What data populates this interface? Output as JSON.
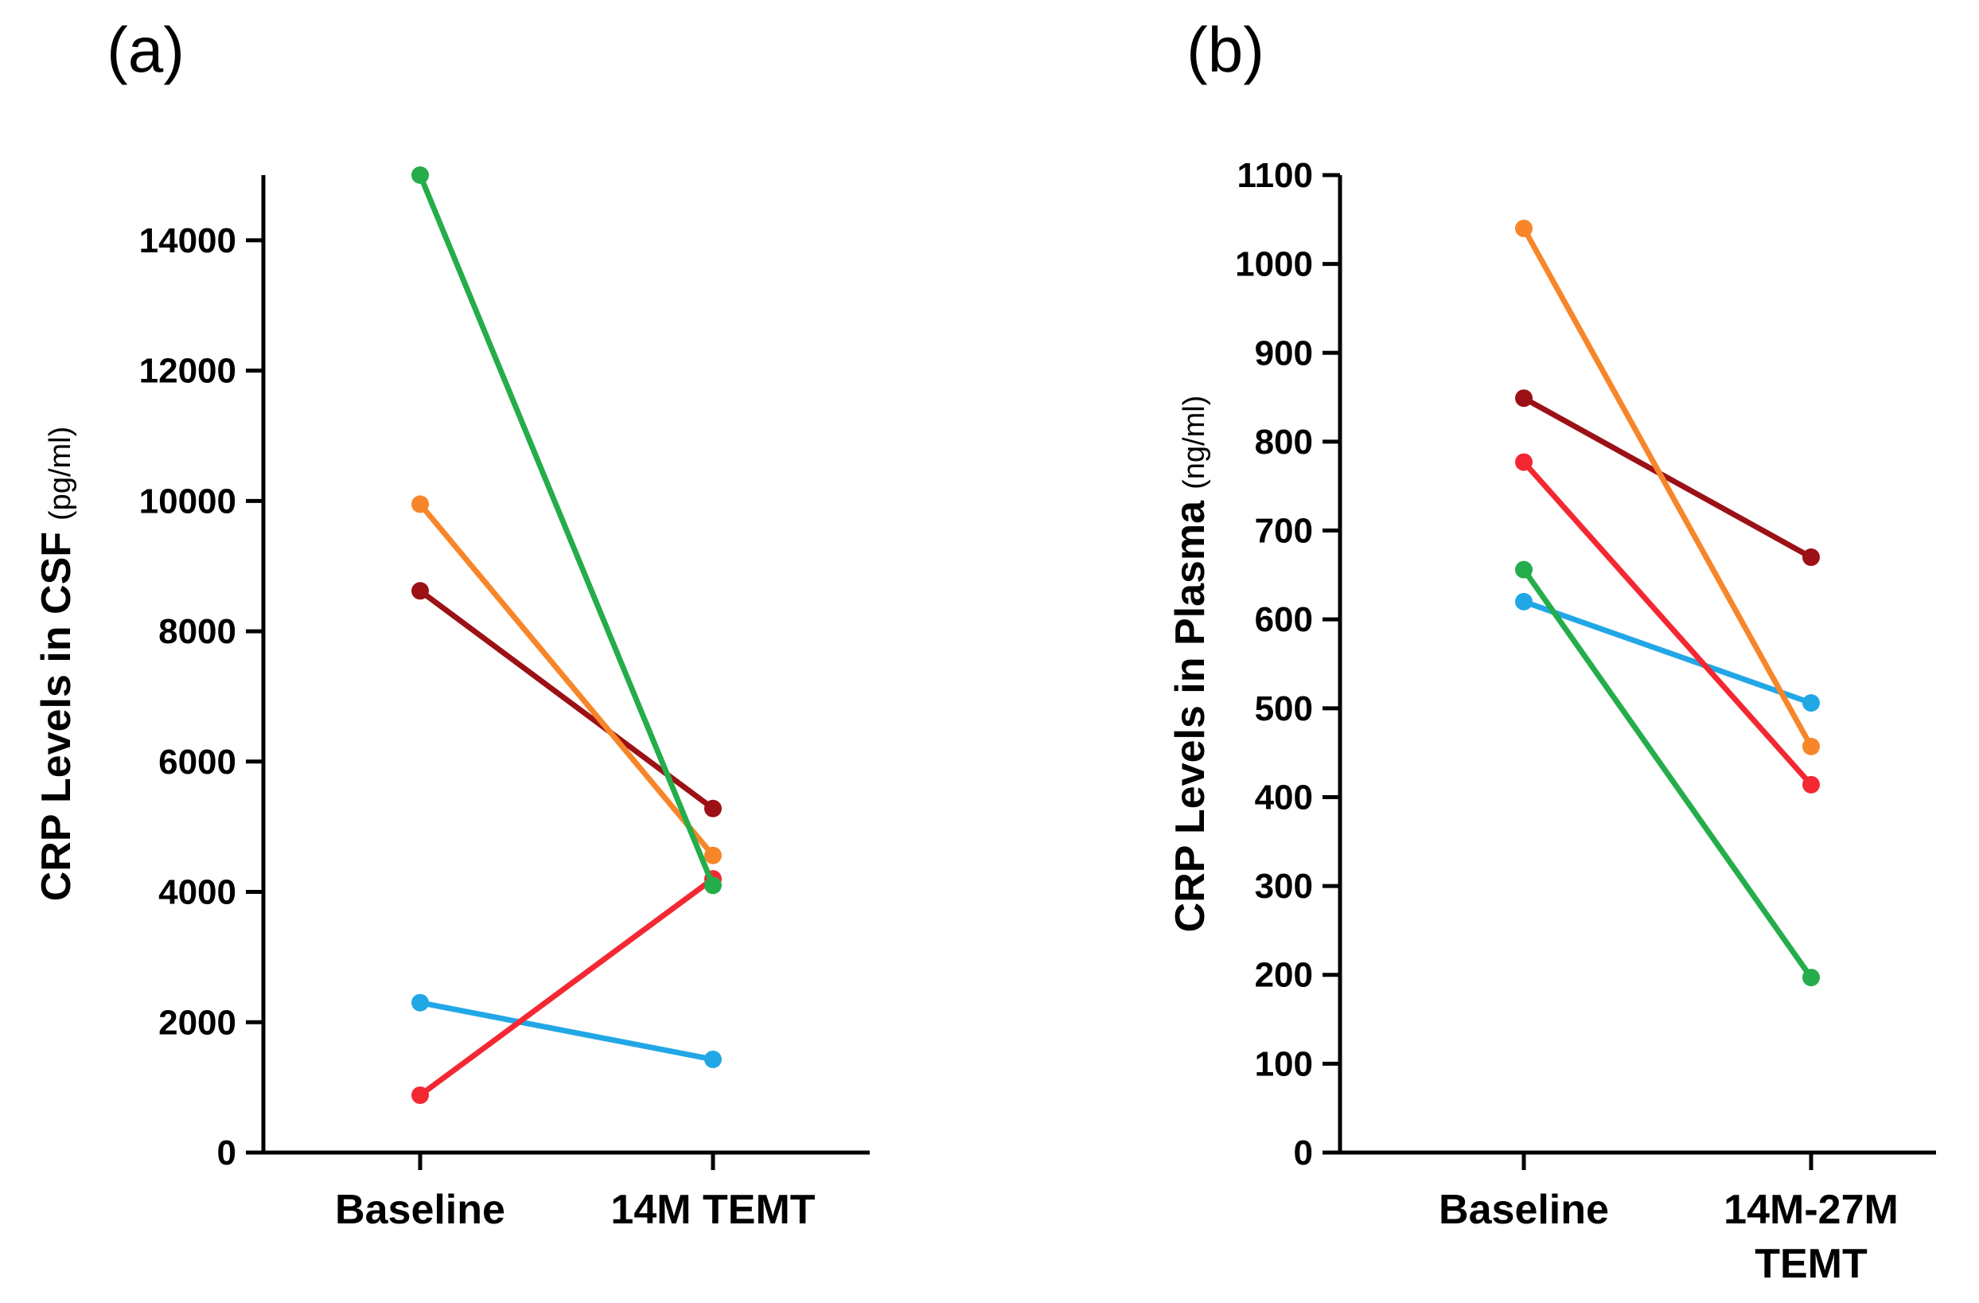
{
  "chart_data": [
    {
      "type": "line",
      "panel_label": "(a)",
      "categories": [
        "Baseline",
        "14M TEMT"
      ],
      "ylabel": "CRP Levels in CSF",
      "ylabel_unit": "(pg/ml)",
      "ylim": [
        0,
        15000
      ],
      "yticks": [
        0,
        2000,
        4000,
        6000,
        8000,
        10000,
        12000,
        14000
      ],
      "ytick_labels": [
        "0",
        "2000",
        "4000",
        "6000",
        "8000",
        "10000",
        "12000",
        "14000"
      ],
      "series": [
        {
          "name": "blue",
          "color": "#22a7e6",
          "values": [
            2300,
            1430
          ]
        },
        {
          "name": "red",
          "color": "#f32833",
          "values": [
            880,
            4200
          ]
        },
        {
          "name": "dark-red",
          "color": "#9b1116",
          "values": [
            8620,
            5280
          ]
        },
        {
          "name": "orange",
          "color": "#f7862a",
          "values": [
            9950,
            4560
          ]
        },
        {
          "name": "green",
          "color": "#24ad4a",
          "values": [
            15000,
            4100
          ]
        }
      ]
    },
    {
      "type": "line",
      "panel_label": "(b)",
      "categories": [
        "Baseline",
        "14M-27M TEMT"
      ],
      "category_lines": [
        [
          "Baseline"
        ],
        [
          "14M-27M",
          "TEMT"
        ]
      ],
      "ylabel": "CRP Levels in Plasma",
      "ylabel_unit": "(ng/ml)",
      "ylim": [
        0,
        1100
      ],
      "yticks": [
        0,
        100,
        200,
        300,
        400,
        500,
        600,
        700,
        800,
        900,
        1000,
        1100
      ],
      "ytick_labels": [
        "0",
        "100",
        "200",
        "300",
        "400",
        "500",
        "600",
        "700",
        "800",
        "900",
        "1000",
        "1100"
      ],
      "series": [
        {
          "name": "blue",
          "color": "#22a7e6",
          "values": [
            620,
            506
          ]
        },
        {
          "name": "green",
          "color": "#24ad4a",
          "values": [
            656,
            197
          ]
        },
        {
          "name": "red",
          "color": "#f32833",
          "values": [
            777,
            414
          ]
        },
        {
          "name": "dark-red",
          "color": "#9b1116",
          "values": [
            849,
            670
          ]
        },
        {
          "name": "orange",
          "color": "#f7862a",
          "values": [
            1040,
            457
          ]
        }
      ]
    }
  ]
}
